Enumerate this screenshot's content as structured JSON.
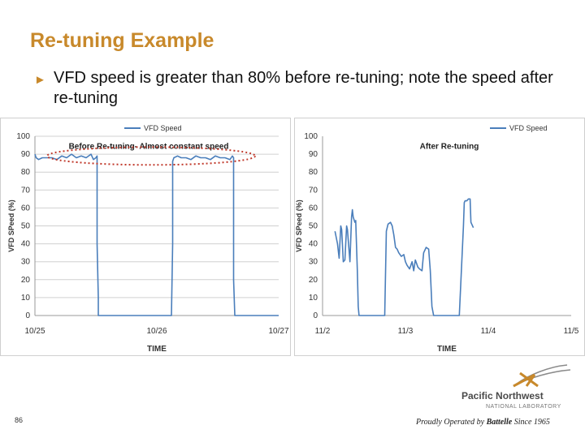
{
  "slide": {
    "title": "Re-tuning Example",
    "bullet": "VFD speed is greater than 80% before re-tuning; note the speed after re-tuning",
    "page_number": "86",
    "logo": {
      "line1": "Pacific Northwest",
      "line2": "NATIONAL LABORATORY"
    },
    "tagline_prefix": "Proudly Operated by ",
    "tagline_brand": "Battelle",
    "tagline_suffix": " Since 1965",
    "accent_color": "#C8892B",
    "line_color": "#4A7EBB"
  },
  "chart_data": [
    {
      "type": "line",
      "annotation": "Before Re-tuning- Almost constant speed",
      "xlabel": "TIME",
      "ylabel": "VFD SPeed (%)",
      "legend": "VFD Speed",
      "legend_position": "top-center",
      "x_ticks": [
        "10/25",
        "10/26",
        "10/27"
      ],
      "ylim": [
        0,
        100
      ],
      "y_ticks": [
        0,
        10,
        20,
        30,
        40,
        50,
        60,
        70,
        80,
        90,
        100
      ],
      "grid": true,
      "series": [
        {
          "name": "VFD Speed",
          "x": [
            0.0,
            0.01,
            0.03,
            0.06,
            0.1,
            0.14,
            0.18,
            0.22,
            0.26,
            0.3,
            0.34,
            0.38,
            0.42,
            0.46,
            0.48,
            0.5,
            0.51,
            0.51,
            0.52,
            0.52,
            0.55,
            0.6,
            0.7,
            0.8,
            0.9,
            1.0,
            1.05,
            1.1,
            1.12,
            1.13,
            1.13,
            1.14,
            1.17,
            1.2,
            1.24,
            1.28,
            1.32,
            1.36,
            1.4,
            1.44,
            1.48,
            1.52,
            1.56,
            1.6,
            1.62,
            1.63,
            1.63,
            1.64,
            1.7,
            1.8,
            1.9,
            2.0
          ],
          "values": [
            90,
            88,
            87,
            88,
            88,
            88,
            87,
            89,
            88,
            90,
            88,
            89,
            88,
            90,
            87,
            88,
            89,
            40,
            10,
            0,
            0,
            0,
            0,
            0,
            0,
            0,
            0,
            0,
            0,
            40,
            86,
            88,
            89,
            88,
            88,
            87,
            89,
            88,
            88,
            87,
            89,
            88,
            88,
            87,
            89,
            88,
            20,
            0,
            0,
            0,
            0,
            0
          ]
        }
      ]
    },
    {
      "type": "line",
      "annotation": "After Re-tuning",
      "xlabel": "TIME",
      "ylabel": "VFD SPeed (%)",
      "legend": "VFD Speed",
      "legend_position": "top-right",
      "x_ticks": [
        "11/2",
        "11/3",
        "11/4",
        "11/5"
      ],
      "ylim": [
        0,
        100
      ],
      "y_ticks": [
        0,
        10,
        20,
        30,
        40,
        50,
        60,
        70,
        80,
        90,
        100
      ],
      "grid": false,
      "series": [
        {
          "name": "VFD Speed",
          "x": [
            0.15,
            0.18,
            0.2,
            0.22,
            0.23,
            0.25,
            0.27,
            0.29,
            0.3,
            0.33,
            0.35,
            0.36,
            0.37,
            0.39,
            0.4,
            0.42,
            0.43,
            0.44,
            0.45,
            0.48,
            0.6,
            0.75,
            0.77,
            0.79,
            0.82,
            0.84,
            0.86,
            0.88,
            0.9,
            0.92,
            0.95,
            0.98,
            1.0,
            1.02,
            1.05,
            1.08,
            1.1,
            1.12,
            1.15,
            1.17,
            1.2,
            1.22,
            1.25,
            1.28,
            1.3,
            1.32,
            1.34,
            1.36,
            1.5,
            1.65,
            1.7,
            1.71,
            1.72,
            1.74,
            1.76,
            1.78,
            1.79,
            1.8,
            1.82
          ],
          "values": [
            47,
            40,
            32,
            50,
            48,
            30,
            31,
            50,
            48,
            30,
            55,
            59,
            55,
            52,
            53,
            25,
            5,
            0,
            0,
            0,
            0,
            0,
            47,
            51,
            52,
            50,
            45,
            38,
            37,
            35,
            33,
            34,
            30,
            28,
            26,
            30,
            25,
            31,
            27,
            26,
            25,
            35,
            38,
            37,
            25,
            5,
            0,
            0,
            0,
            0,
            50,
            63,
            64,
            64,
            65,
            65,
            52,
            51,
            49
          ]
        }
      ]
    }
  ]
}
